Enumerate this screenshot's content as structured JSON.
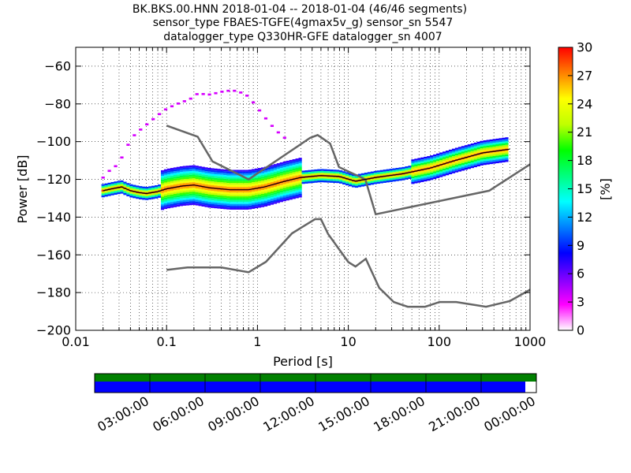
{
  "chart_data": [
    {
      "type": "heatmap",
      "title_lines": [
        "BK.BKS.00.HNN   2018-01-04 -- 2018-01-04  (46/46 segments)",
        "sensor_type FBAES-TGFE(4gmax5v_g) sensor_sn 5547",
        "datalogger_type Q330HR-GFE datalogger_sn 4007"
      ],
      "xlabel": "Period [s]",
      "ylabel": "Power [dB]",
      "xscale": "log",
      "xlim": [
        0.01,
        1000
      ],
      "ylim": [
        -200,
        -50
      ],
      "grid": true,
      "xticks": [
        {
          "value": 0.01,
          "label": "0.01"
        },
        {
          "value": 0.1,
          "label": "0.1"
        },
        {
          "value": 1,
          "label": "1"
        },
        {
          "value": 10,
          "label": "10"
        },
        {
          "value": 100,
          "label": "100"
        },
        {
          "value": 1000,
          "label": "1000"
        }
      ],
      "yticks": [
        {
          "value": -60,
          "label": "−60"
        },
        {
          "value": -80,
          "label": "−80"
        },
        {
          "value": -100,
          "label": "−100"
        },
        {
          "value": -120,
          "label": "−120"
        },
        {
          "value": -140,
          "label": "−140"
        },
        {
          "value": -160,
          "label": "−160"
        },
        {
          "value": -180,
          "label": "−180"
        },
        {
          "value": -200,
          "label": "−200"
        }
      ],
      "colorbar": {
        "label": "[%]",
        "range": [
          0,
          30
        ],
        "ticks": [
          {
            "value": 0,
            "label": "0"
          },
          {
            "value": 3,
            "label": "3"
          },
          {
            "value": 6,
            "label": "6"
          },
          {
            "value": 9,
            "label": "9"
          },
          {
            "value": 12,
            "label": "12"
          },
          {
            "value": 15,
            "label": "15"
          },
          {
            "value": 18,
            "label": "18"
          },
          {
            "value": 21,
            "label": "21"
          },
          {
            "value": 24,
            "label": "24"
          },
          {
            "value": 27,
            "label": "27"
          },
          {
            "value": 30,
            "label": "30"
          }
        ],
        "colors": [
          "#ffffff",
          "#ff00ff",
          "#8000ff",
          "#0000ff",
          "#0080ff",
          "#00ffff",
          "#00ff80",
          "#00ff00",
          "#c0ff00",
          "#ffff00",
          "#ff8000",
          "#ff0000"
        ]
      },
      "series": [
        {
          "name": "new high noise model",
          "kind": "line",
          "color": "#666666",
          "x": [
            0.1,
            0.22,
            0.32,
            0.8,
            3.8,
            4.6,
            6.3,
            7.9,
            15.4,
            20,
            354.8,
            1000
          ],
          "y": [
            -91.5,
            -97.4,
            -110.5,
            -120,
            -98,
            -96.5,
            -101,
            -113.5,
            -120,
            -138.5,
            -126,
            -112
          ]
        },
        {
          "name": "new low noise model",
          "kind": "line",
          "color": "#666666",
          "x": [
            0.1,
            0.17,
            0.4,
            0.8,
            1.24,
            2.4,
            4.3,
            5,
            6,
            10,
            12,
            15.6,
            21.9,
            31.6,
            45,
            70,
            101,
            154,
            328,
            600,
            1000
          ],
          "y": [
            -168,
            -166.7,
            -166.7,
            -169.2,
            -163.7,
            -148.6,
            -141.1,
            -141.1,
            -149,
            -163.8,
            -166.2,
            -162.1,
            -177.5,
            -185,
            -187.5,
            -187.5,
            -185,
            -185,
            -187.5,
            -184.5,
            -178.5
          ]
        },
        {
          "name": "mode",
          "kind": "line",
          "color": "#000000",
          "x": [
            0.02,
            0.025,
            0.032,
            0.04,
            0.05,
            0.06,
            0.08,
            0.1,
            0.15,
            0.2,
            0.3,
            0.5,
            0.8,
            1.2,
            2,
            3,
            5,
            8,
            12,
            20,
            40,
            80,
            150,
            300,
            600
          ],
          "y": [
            -126,
            -125,
            -124,
            -126,
            -127,
            -127.5,
            -126.5,
            -125,
            -123.5,
            -123,
            -124.5,
            -125.5,
            -125.5,
            -124,
            -121,
            -119,
            -118,
            -118.5,
            -121,
            -119,
            -117,
            -114,
            -110,
            -106,
            -104
          ]
        },
        {
          "name": "upper PDF branch",
          "kind": "pdf-band",
          "color": "#8000ff",
          "x": [
            0.02,
            0.025,
            0.03,
            0.035,
            0.045,
            0.06,
            0.08,
            0.1,
            0.13,
            0.18,
            0.22,
            0.3,
            0.45,
            0.6,
            0.8,
            1.0,
            1.3,
            1.6,
            2.0
          ],
          "y": [
            -119,
            -114,
            -112,
            -104,
            -96,
            -91,
            -86,
            -82.5,
            -80,
            -77.5,
            -74.5,
            -75,
            -73,
            -73,
            -76,
            -82,
            -89,
            -94,
            -98
          ]
        },
        {
          "name": "lower PDF core",
          "kind": "pdf-band",
          "x": [
            0.02,
            0.025,
            0.032,
            0.04,
            0.05,
            0.06,
            0.08,
            0.1,
            0.15,
            0.2,
            0.3,
            0.5,
            0.8,
            1.2,
            2,
            3,
            5,
            8,
            12,
            20,
            40,
            80,
            150,
            300,
            600
          ],
          "y": [
            -126,
            -125,
            -124,
            -126,
            -127,
            -127.5,
            -126.5,
            -125,
            -123.5,
            -123,
            -124.5,
            -125.5,
            -125.5,
            -124,
            -121,
            -119,
            -118,
            -118.5,
            -121,
            -119,
            -117,
            -114,
            -110,
            -106,
            -104
          ]
        }
      ]
    },
    {
      "type": "bar",
      "description_role": "data availability timeline",
      "tick_labels": [
        "03:00:00",
        "06:00:00",
        "09:00:00",
        "12:00:00",
        "15:00:00",
        "18:00:00",
        "21:00:00",
        "00:00:00"
      ],
      "tick_hours": [
        3,
        6,
        9,
        12,
        15,
        18,
        21,
        24
      ],
      "xlim_hours": [
        0,
        24
      ],
      "series": [
        {
          "name": "top strip",
          "color": "#008000",
          "coverage": [
            0,
            24
          ]
        },
        {
          "name": "bottom strip",
          "color": "#0000ff",
          "coverage": [
            0,
            23.4
          ]
        }
      ]
    }
  ]
}
